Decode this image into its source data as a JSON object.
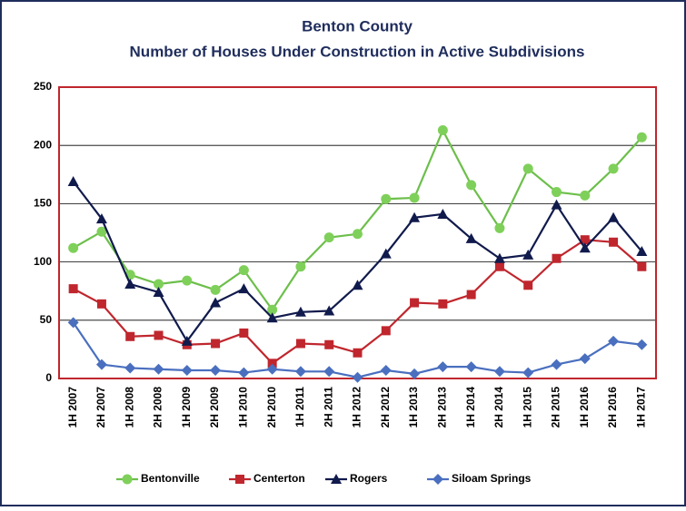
{
  "chart_data": {
    "type": "line",
    "title": "Benton County",
    "subtitle": "Number of Houses Under Construction in Active Subdivisions",
    "categories": [
      "1H 2007",
      "2H 2007",
      "1H 2008",
      "2H 2008",
      "1H 2009",
      "2H 2009",
      "1H 2010",
      "2H 2010",
      "1H 2011",
      "2H 2011",
      "1H 2012",
      "2H 2012",
      "1H 2013",
      "2H 2013",
      "1H 2014",
      "2H 2014",
      "1H 2015",
      "2H 2015",
      "1H 2016",
      "2H 2016",
      "1H 2017"
    ],
    "series": [
      {
        "name": "Bentonville",
        "color": "#6cbf4a",
        "marker": "circle",
        "values": [
          112,
          126,
          89,
          81,
          84,
          76,
          93,
          59,
          96,
          121,
          124,
          154,
          155,
          213,
          166,
          129,
          180,
          160,
          157,
          180,
          207
        ]
      },
      {
        "name": "Centerton",
        "color": "#c0262d",
        "marker": "square",
        "values": [
          77,
          64,
          36,
          37,
          29,
          30,
          39,
          13,
          30,
          29,
          22,
          41,
          65,
          64,
          72,
          96,
          80,
          103,
          119,
          117,
          96
        ]
      },
      {
        "name": "Rogers",
        "color": "#101a4c",
        "marker": "triangle",
        "values": [
          169,
          137,
          81,
          74,
          32,
          65,
          77,
          52,
          57,
          58,
          80,
          107,
          138,
          141,
          120,
          103,
          106,
          149,
          112,
          138,
          109
        ]
      },
      {
        "name": "Siloam Springs",
        "color": "#4a6fbf",
        "marker": "diamond",
        "values": [
          48,
          12,
          9,
          8,
          7,
          7,
          5,
          8,
          6,
          6,
          1,
          7,
          4,
          10,
          10,
          6,
          5,
          12,
          17,
          32,
          29
        ]
      }
    ],
    "ylim": [
      0,
      250
    ],
    "yticks": [
      0,
      50,
      100,
      150,
      200,
      250
    ],
    "grid": true,
    "legend": "bottom"
  }
}
